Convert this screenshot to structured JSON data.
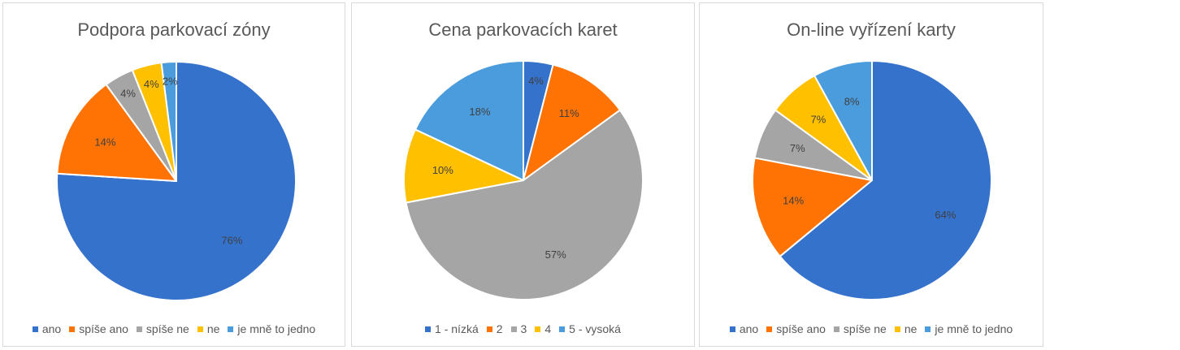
{
  "chart_data": [
    {
      "type": "pie",
      "title": "Podpora parkovací zóny",
      "categories": [
        "ano",
        "spíše ano",
        "spíše ne",
        "ne",
        "je mně to jedno"
      ],
      "values": [
        76,
        14,
        4,
        4,
        2
      ],
      "labels": [
        "76%",
        "14%",
        "4%",
        "4%",
        "2%"
      ],
      "colors": [
        "#3572CC",
        "#FF7304",
        "#A5A5A5",
        "#FFC000",
        "#4A9CDC"
      ],
      "legend_position": "bottom"
    },
    {
      "type": "pie",
      "title": "Cena parkovacích karet",
      "categories": [
        "1 - nízká",
        "2",
        "3",
        "4",
        "5 - vysoká"
      ],
      "values": [
        4,
        11,
        57,
        10,
        18
      ],
      "labels": [
        "4%",
        "11%",
        "57%",
        "10%",
        "18%"
      ],
      "colors": [
        "#3572CC",
        "#FF7304",
        "#A5A5A5",
        "#FFC000",
        "#4A9CDC"
      ],
      "legend_position": "bottom"
    },
    {
      "type": "pie",
      "title": "On-line vyřízení karty",
      "categories": [
        "ano",
        "spíše ano",
        "spíše ne",
        "ne",
        "je mně to jedno"
      ],
      "values": [
        64,
        14,
        7,
        7,
        8
      ],
      "labels": [
        "64%",
        "14%",
        "7%",
        "7%",
        "8%"
      ],
      "colors": [
        "#3572CC",
        "#FF7304",
        "#A5A5A5",
        "#FFC000",
        "#4A9CDC"
      ],
      "legend_position": "bottom"
    }
  ]
}
